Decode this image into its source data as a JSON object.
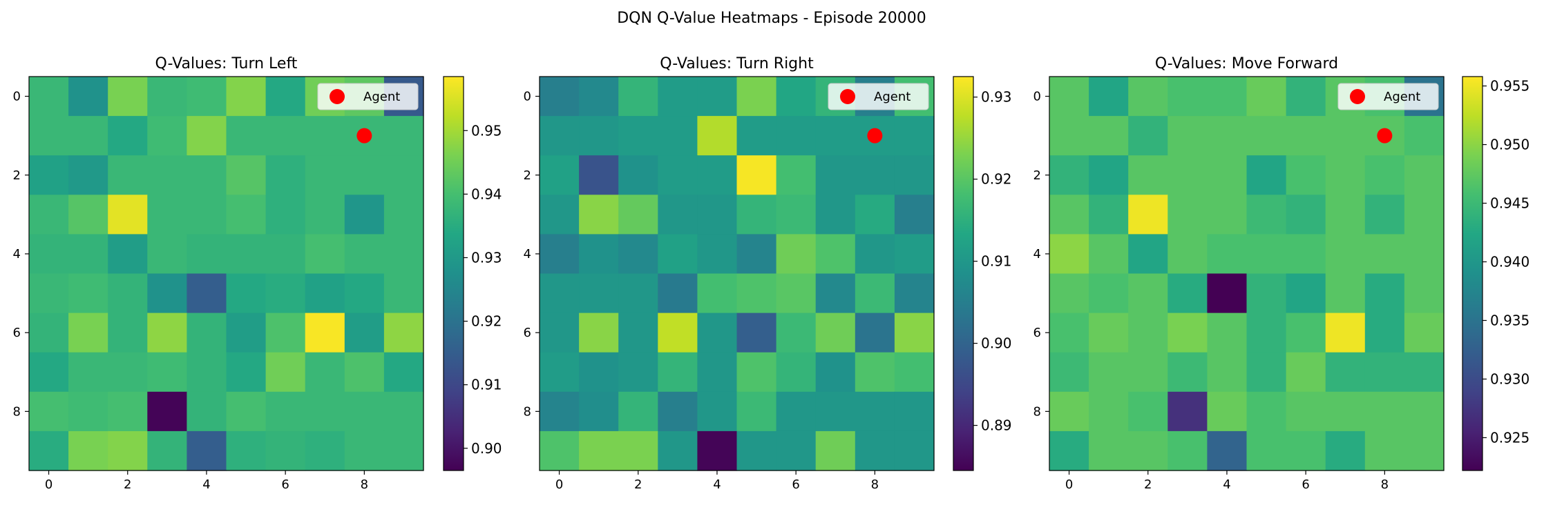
{
  "figure": {
    "title": "DQN Q-Value Heatmaps - Episode 20000"
  },
  "chart_data": [
    {
      "type": "heatmap",
      "title": "Q-Values: Turn Left",
      "x_ticks": [
        "0",
        "2",
        "4",
        "6",
        "8"
      ],
      "y_ticks": [
        "0",
        "2",
        "4",
        "6",
        "8"
      ],
      "colorbar": {
        "vmin": 0.8965,
        "vmax": 0.9585,
        "ticks": [
          0.9,
          0.91,
          0.92,
          0.93,
          0.94,
          0.95
        ],
        "tick_labels": [
          "0.90",
          "0.91",
          "0.92",
          "0.93",
          "0.94",
          "0.95"
        ]
      },
      "legend": {
        "label": "Agent",
        "position": "top-right"
      },
      "agent": {
        "x": 8,
        "y": 1,
        "color": "#ff0000"
      },
      "values": [
        [
          0.938,
          0.928,
          0.946,
          0.938,
          0.939,
          0.947,
          0.934,
          0.945,
          0.943,
          0.914
        ],
        [
          0.938,
          0.938,
          0.934,
          0.939,
          0.947,
          0.938,
          0.938,
          0.938,
          0.938,
          0.938
        ],
        [
          0.932,
          0.93,
          0.938,
          0.938,
          0.938,
          0.942,
          0.936,
          0.938,
          0.938,
          0.938
        ],
        [
          0.938,
          0.942,
          0.956,
          0.938,
          0.938,
          0.94,
          0.936,
          0.938,
          0.929,
          0.938
        ],
        [
          0.937,
          0.937,
          0.931,
          0.938,
          0.937,
          0.937,
          0.937,
          0.94,
          0.938,
          0.938
        ],
        [
          0.938,
          0.939,
          0.937,
          0.928,
          0.915,
          0.934,
          0.935,
          0.932,
          0.934,
          0.938
        ],
        [
          0.937,
          0.946,
          0.937,
          0.948,
          0.937,
          0.931,
          0.941,
          0.958,
          0.931,
          0.948
        ],
        [
          0.934,
          0.938,
          0.938,
          0.939,
          0.937,
          0.934,
          0.945,
          0.938,
          0.941,
          0.934
        ],
        [
          0.94,
          0.939,
          0.94,
          0.897,
          0.937,
          0.94,
          0.938,
          0.938,
          0.938,
          0.938
        ],
        [
          0.935,
          0.946,
          0.947,
          0.937,
          0.915,
          0.936,
          0.937,
          0.936,
          0.938,
          0.938
        ]
      ]
    },
    {
      "type": "heatmap",
      "title": "Q-Values: Turn Right",
      "x_ticks": [
        "0",
        "2",
        "4",
        "6",
        "8"
      ],
      "y_ticks": [
        "0",
        "2",
        "4",
        "6",
        "8"
      ],
      "colorbar": {
        "vmin": 0.8845,
        "vmax": 0.9325,
        "ticks": [
          0.89,
          0.9,
          0.91,
          0.92,
          0.93
        ],
        "tick_labels": [
          "0.89",
          "0.90",
          "0.91",
          "0.92",
          "0.93"
        ]
      },
      "legend": {
        "label": "Agent",
        "position": "top-right"
      },
      "agent": {
        "x": 8,
        "y": 1,
        "color": "#ff0000"
      },
      "values": [
        [
          0.905,
          0.907,
          0.916,
          0.911,
          0.911,
          0.923,
          0.913,
          0.916,
          0.905,
          0.918
        ],
        [
          0.91,
          0.91,
          0.911,
          0.911,
          0.927,
          0.911,
          0.911,
          0.911,
          0.911,
          0.911
        ],
        [
          0.912,
          0.897,
          0.909,
          0.911,
          0.911,
          0.932,
          0.918,
          0.91,
          0.91,
          0.91
        ],
        [
          0.91,
          0.924,
          0.921,
          0.91,
          0.91,
          0.916,
          0.917,
          0.91,
          0.914,
          0.905
        ],
        [
          0.905,
          0.909,
          0.907,
          0.912,
          0.91,
          0.906,
          0.922,
          0.919,
          0.91,
          0.911
        ],
        [
          0.91,
          0.91,
          0.91,
          0.904,
          0.918,
          0.919,
          0.92,
          0.907,
          0.917,
          0.906
        ],
        [
          0.91,
          0.924,
          0.91,
          0.928,
          0.91,
          0.899,
          0.917,
          0.922,
          0.903,
          0.924
        ],
        [
          0.911,
          0.909,
          0.91,
          0.916,
          0.91,
          0.919,
          0.916,
          0.909,
          0.919,
          0.918
        ],
        [
          0.906,
          0.908,
          0.916,
          0.905,
          0.91,
          0.917,
          0.91,
          0.91,
          0.91,
          0.91
        ],
        [
          0.919,
          0.923,
          0.923,
          0.91,
          0.885,
          0.91,
          0.91,
          0.922,
          0.91,
          0.91
        ]
      ]
    },
    {
      "type": "heatmap",
      "title": "Q-Values: Move Forward",
      "x_ticks": [
        "0",
        "2",
        "4",
        "6",
        "8"
      ],
      "y_ticks": [
        "0",
        "2",
        "4",
        "6",
        "8"
      ],
      "colorbar": {
        "vmin": 0.9222,
        "vmax": 0.9558,
        "ticks": [
          0.925,
          0.93,
          0.935,
          0.94,
          0.945,
          0.95,
          0.955
        ],
        "tick_labels": [
          "0.925",
          "0.930",
          "0.935",
          "0.940",
          "0.945",
          "0.950",
          "0.955"
        ]
      },
      "legend": {
        "label": "Agent",
        "position": "top-right"
      },
      "agent": {
        "x": 8,
        "y": 1,
        "color": "#ff0000"
      },
      "values": [
        [
          0.947,
          0.942,
          0.947,
          0.946,
          0.946,
          0.948,
          0.944,
          0.947,
          0.946,
          0.935
        ],
        [
          0.947,
          0.947,
          0.944,
          0.947,
          0.947,
          0.947,
          0.947,
          0.947,
          0.947,
          0.946
        ],
        [
          0.944,
          0.942,
          0.947,
          0.947,
          0.947,
          0.942,
          0.946,
          0.947,
          0.946,
          0.947
        ],
        [
          0.947,
          0.944,
          0.955,
          0.947,
          0.947,
          0.945,
          0.944,
          0.947,
          0.944,
          0.947
        ],
        [
          0.95,
          0.947,
          0.942,
          0.947,
          0.946,
          0.946,
          0.946,
          0.947,
          0.947,
          0.947
        ],
        [
          0.947,
          0.946,
          0.947,
          0.943,
          0.922,
          0.944,
          0.942,
          0.947,
          0.943,
          0.947
        ],
        [
          0.946,
          0.948,
          0.947,
          0.949,
          0.947,
          0.944,
          0.946,
          0.955,
          0.943,
          0.948
        ],
        [
          0.945,
          0.947,
          0.947,
          0.945,
          0.947,
          0.944,
          0.948,
          0.944,
          0.944,
          0.944
        ],
        [
          0.948,
          0.947,
          0.946,
          0.927,
          0.948,
          0.946,
          0.947,
          0.947,
          0.947,
          0.947
        ],
        [
          0.943,
          0.947,
          0.947,
          0.946,
          0.933,
          0.946,
          0.946,
          0.943,
          0.947,
          0.947
        ]
      ]
    }
  ]
}
